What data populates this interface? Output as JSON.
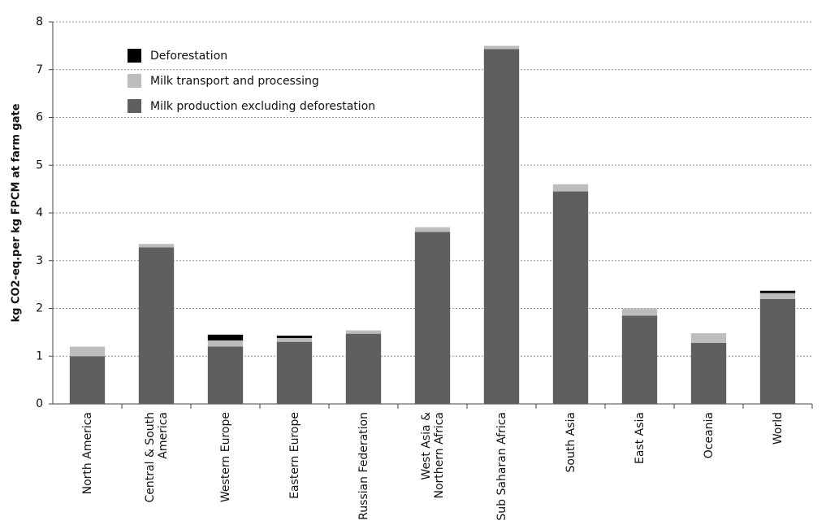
{
  "chart_data": {
    "type": "stacked_bar",
    "y_label": "kg CO2-eq.per kg FPCM at farm gate",
    "categories": [
      "North America",
      "Central & South America",
      "Western Europe",
      "Eastern Europe",
      "Russian Federation",
      "West Asia & Northern Africa",
      "Sub Saharan Africa",
      "South Asia",
      "East Asia",
      "Oceania",
      "World"
    ],
    "series": [
      {
        "name": "Milk production excluding deforestation",
        "color": "#5f5f5f",
        "values": [
          1.0,
          3.28,
          1.2,
          1.3,
          1.47,
          3.6,
          7.43,
          4.45,
          1.85,
          1.28,
          2.2
        ]
      },
      {
        "name": "Milk transport and processing",
        "color": "#bdbdbd",
        "values": [
          0.2,
          0.07,
          0.13,
          0.08,
          0.07,
          0.1,
          0.07,
          0.15,
          0.15,
          0.2,
          0.12
        ]
      },
      {
        "name": "Deforestation",
        "color": "#000000",
        "values": [
          0,
          0,
          0.12,
          0.05,
          0,
          0,
          0,
          0,
          0,
          0,
          0.05
        ]
      }
    ],
    "ylim": [
      0,
      8
    ],
    "yticks": [
      0,
      1,
      2,
      3,
      4,
      5,
      6,
      7,
      8
    ],
    "grid": true
  }
}
